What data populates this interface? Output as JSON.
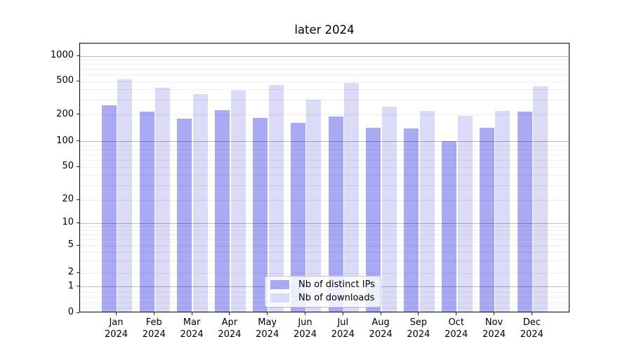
{
  "chart_data": {
    "type": "bar",
    "title": "later 2024",
    "categories": [
      [
        "Jan",
        "2024"
      ],
      [
        "Feb",
        "2024"
      ],
      [
        "Mar",
        "2024"
      ],
      [
        "Apr",
        "2024"
      ],
      [
        "May",
        "2024"
      ],
      [
        "Jun",
        "2024"
      ],
      [
        "Jul",
        "2024"
      ],
      [
        "Aug",
        "2024"
      ],
      [
        "Sep",
        "2024"
      ],
      [
        "Oct",
        "2024"
      ],
      [
        "Nov",
        "2024"
      ],
      [
        "Dec",
        "2024"
      ]
    ],
    "series": [
      {
        "name": "Nb of distinct IPs",
        "color": "#aaaaf4",
        "values": [
          250,
          212,
          174,
          218,
          178,
          157,
          184,
          139,
          135,
          97,
          138,
          210
        ]
      },
      {
        "name": "Nb of downloads",
        "color": "#dbdbf7",
        "values": [
          505,
          408,
          340,
          372,
          436,
          292,
          462,
          241,
          216,
          190,
          216,
          419
        ]
      }
    ],
    "xlabel": "",
    "ylabel": "",
    "yscale": "symlog-like",
    "yticks": [
      0,
      1,
      2,
      5,
      10,
      20,
      50,
      100,
      200,
      500,
      1000
    ],
    "ylim": [
      0,
      1400
    ],
    "grid": true,
    "legend_position": "lower center"
  }
}
